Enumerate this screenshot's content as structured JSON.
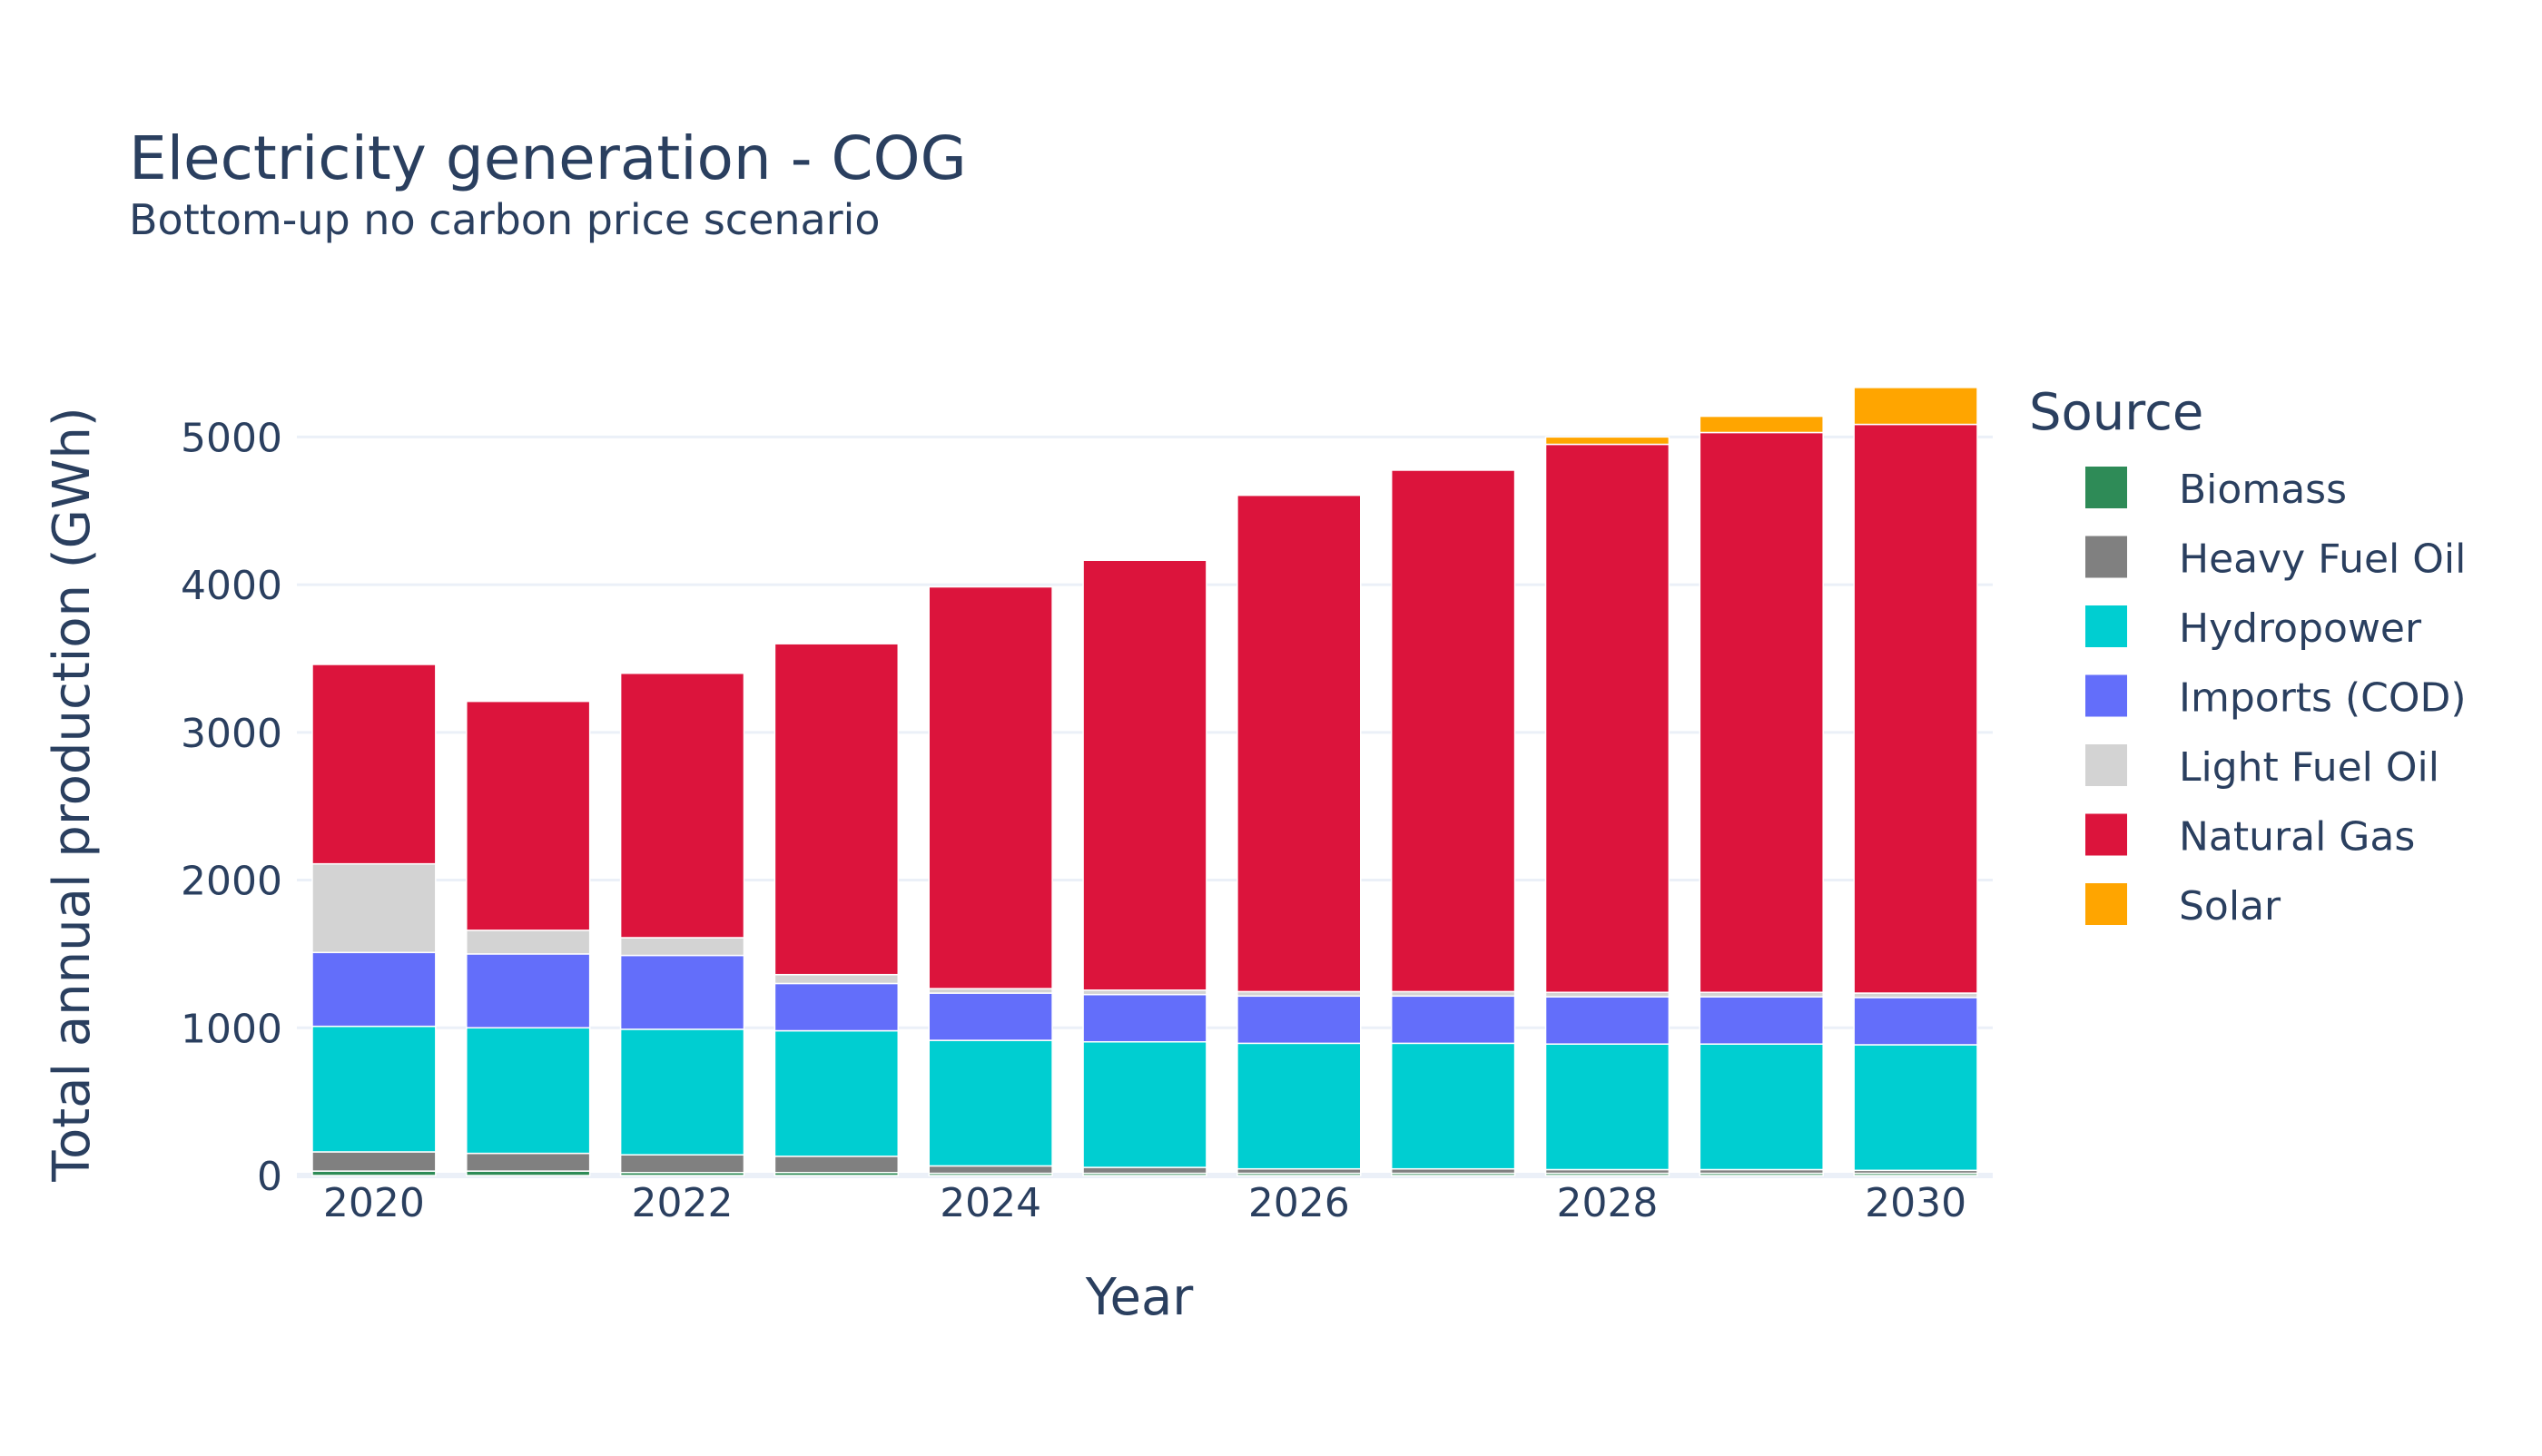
{
  "chart_data": {
    "type": "bar",
    "stacked": true,
    "title": "Electricity generation - COG",
    "subtitle": "Bottom-up no carbon price scenario",
    "xlabel": "Year",
    "ylabel": "Total annual production (GWh)",
    "ylim": [
      0,
      5500
    ],
    "yticks": [
      0,
      1000,
      2000,
      3000,
      4000,
      5000
    ],
    "xticks": [
      2020,
      2022,
      2024,
      2026,
      2028,
      2030
    ],
    "x": [
      2020,
      2021,
      2022,
      2023,
      2024,
      2025,
      2026,
      2027,
      2028,
      2029,
      2030
    ],
    "grid": true,
    "legend": {
      "title": "Source",
      "placement": "right"
    },
    "series": [
      {
        "name": "Biomass",
        "color": "#2e8b57",
        "values": [
          30,
          30,
          20,
          20,
          15,
          15,
          15,
          15,
          15,
          15,
          15
        ]
      },
      {
        "name": "Heavy Fuel Oil",
        "color": "#808080",
        "values": [
          130,
          120,
          120,
          110,
          50,
          40,
          30,
          30,
          25,
          25,
          20
        ]
      },
      {
        "name": "Hydropower",
        "color": "#00ced1",
        "values": [
          850,
          850,
          850,
          850,
          850,
          850,
          850,
          850,
          850,
          850,
          850
        ]
      },
      {
        "name": "Imports (COD)",
        "color": "#636efa",
        "values": [
          500,
          500,
          500,
          320,
          320,
          320,
          320,
          320,
          320,
          320,
          320
        ]
      },
      {
        "name": "Light Fuel Oil",
        "color": "#d3d3d3",
        "values": [
          600,
          160,
          120,
          60,
          30,
          30,
          30,
          30,
          30,
          30,
          30
        ]
      },
      {
        "name": "Natural Gas",
        "color": "#dc143c",
        "values": [
          1350,
          1550,
          1790,
          2240,
          2720,
          2910,
          3360,
          3530,
          3710,
          3790,
          3850
        ]
      },
      {
        "name": "Solar",
        "color": "#ffa500",
        "values": [
          0,
          0,
          0,
          0,
          0,
          0,
          0,
          0,
          50,
          110,
          250
        ]
      }
    ]
  }
}
